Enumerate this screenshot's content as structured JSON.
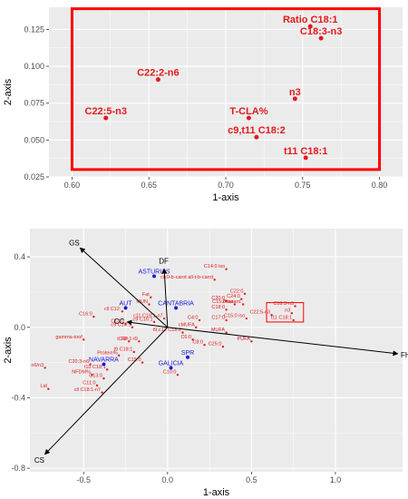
{
  "colors": {
    "panel": "#ebebeb",
    "grid": "#ffffff",
    "highlight": "#ff0000",
    "points": "#e31a1c",
    "regions": "#1a1ad6",
    "vectors": "#000000"
  },
  "chart_data": [
    {
      "type": "scatter",
      "title": "",
      "xlabel": "1-axis",
      "ylabel": "2-axis",
      "xlim": [
        0.585,
        0.815
      ],
      "ylim": [
        0.025,
        0.14
      ],
      "xticks": [
        "0.60",
        "0.65",
        "0.70",
        "0.75",
        "0.80"
      ],
      "yticks": [
        "0.025",
        "0.050",
        "0.075",
        "0.100",
        "0.125"
      ],
      "xtick_values": [
        0.6,
        0.65,
        0.7,
        0.75,
        0.8
      ],
      "ytick_values": [
        0.025,
        0.05,
        0.075,
        0.1,
        0.125
      ],
      "grid": true,
      "highlight_box": {
        "x": [
          0.6,
          0.8
        ],
        "y": [
          0.03,
          0.139
        ]
      },
      "points": [
        {
          "label": "Ratio C18:1",
          "x": 0.755,
          "y": 0.127
        },
        {
          "label": "C18:3-n3",
          "x": 0.762,
          "y": 0.119
        },
        {
          "label": "C22:2-n6",
          "x": 0.656,
          "y": 0.091
        },
        {
          "label": "n3",
          "x": 0.745,
          "y": 0.078
        },
        {
          "label": "C22:5-n3",
          "x": 0.622,
          "y": 0.065
        },
        {
          "label": "T-CLA%",
          "x": 0.715,
          "y": 0.065
        },
        {
          "label": "c9,t11 C18:2",
          "x": 0.72,
          "y": 0.052
        },
        {
          "label": "t11 C18:1",
          "x": 0.752,
          "y": 0.038
        }
      ]
    },
    {
      "type": "scatter",
      "title": "",
      "xlabel": "1-axis",
      "ylabel": "2-axis",
      "xlim": [
        -0.82,
        1.4
      ],
      "ylim": [
        -0.82,
        0.56
      ],
      "xticks": [
        "-0.5",
        "0.0",
        "0.5",
        "1.0"
      ],
      "yticks": [
        "-0.8",
        "-0.4",
        "0.0",
        "0.4"
      ],
      "xtick_values": [
        -0.5,
        0.0,
        0.5,
        1.0
      ],
      "ytick_values": [
        -0.8,
        -0.4,
        0.0,
        0.4
      ],
      "grid": true,
      "highlight_box": {
        "x": [
          0.59,
          0.81
        ],
        "y": [
          0.03,
          0.14
        ]
      },
      "vectors": [
        {
          "label": "GS",
          "x": -0.52,
          "y": 0.45
        },
        {
          "label": "DF",
          "x": -0.02,
          "y": 0.33
        },
        {
          "label": "FH",
          "x": 1.37,
          "y": -0.15
        },
        {
          "label": "CS",
          "x": -0.73,
          "y": -0.72
        },
        {
          "label": "CC",
          "x": -0.24,
          "y": 0.03
        }
      ],
      "regions": [
        {
          "label": "ASTURIAS",
          "x": -0.08,
          "y": 0.29
        },
        {
          "label": "AUT",
          "x": -0.25,
          "y": 0.11
        },
        {
          "label": "CANTABRIA",
          "x": 0.05,
          "y": 0.11
        },
        {
          "label": "NAVARRA",
          "x": -0.38,
          "y": -0.21
        },
        {
          "label": "SPR",
          "x": 0.12,
          "y": -0.17
        },
        {
          "label": "GALICIA",
          "x": 0.02,
          "y": -0.23
        }
      ],
      "points": [
        {
          "label": "C14:0 iso",
          "x": 0.35,
          "y": 0.33
        },
        {
          "label": "cis9-b-carot all-t-b-carot",
          "x": 0.28,
          "y": 0.27
        },
        {
          "label": "C22:0",
          "x": 0.46,
          "y": 0.19
        },
        {
          "label": "C20:0",
          "x": 0.35,
          "y": 0.15
        },
        {
          "label": "C24:0",
          "x": 0.44,
          "y": 0.16
        },
        {
          "label": "C15:0 iso",
          "x": 0.4,
          "y": 0.13
        },
        {
          "label": "Zeaxant.",
          "x": 0.45,
          "y": 0.13
        },
        {
          "label": "C18:0",
          "x": 0.35,
          "y": 0.1
        },
        {
          "label": "C15:0 iso",
          "x": 0.47,
          "y": 0.05
        },
        {
          "label": "C18:3-n3",
          "x": 0.76,
          "y": 0.12
        },
        {
          "label": "C22:5-n3",
          "x": 0.62,
          "y": 0.07
        },
        {
          "label": "t11 C18:1",
          "x": 0.75,
          "y": 0.04
        },
        {
          "label": "n3",
          "x": 0.74,
          "y": 0.08
        },
        {
          "label": "MUN",
          "x": -0.11,
          "y": 0.13
        },
        {
          "label": "Fat",
          "x": -0.1,
          "y": 0.17
        },
        {
          "label": "cll C12:",
          "x": -0.27,
          "y": 0.09
        },
        {
          "label": "C16:0",
          "x": -0.44,
          "y": 0.06
        },
        {
          "label": "C14:0",
          "x": -0.25,
          "y": 0.02
        },
        {
          "label": "c9 C14:1",
          "x": -0.21,
          "y": 0.0
        },
        {
          "label": "c9 C16:1",
          "x": -0.08,
          "y": 0.03
        },
        {
          "label": "c11 C18:1-n7",
          "x": -0.02,
          "y": 0.05
        },
        {
          "label": "C17:0",
          "x": 0.35,
          "y": 0.04
        },
        {
          "label": "C4:0",
          "x": 0.19,
          "y": 0.04
        },
        {
          "label": "cMUFA",
          "x": 0.17,
          "y": 0.0
        },
        {
          "label": "MUFA",
          "x": 0.35,
          "y": -0.03
        },
        {
          "label": "PUFA",
          "x": 0.5,
          "y": -0.08
        },
        {
          "label": "gamma-toof",
          "x": -0.5,
          "y": -0.07
        },
        {
          "label": "FP",
          "x": -0.23,
          "y": -0.08
        },
        {
          "label": "tC18:1-t9",
          "x": -0.17,
          "y": -0.08
        },
        {
          "label": "C6:0",
          "x": 0.15,
          "y": -0.07
        },
        {
          "label": "C8:0",
          "x": 0.22,
          "y": -0.1
        },
        {
          "label": "t9,c12 C18:2",
          "x": 0.09,
          "y": -0.03
        },
        {
          "label": "C25:0",
          "x": 0.33,
          "y": -0.11
        },
        {
          "label": "Protein%",
          "x": -0.29,
          "y": -0.16
        },
        {
          "label": "t9 C18:1",
          "x": -0.2,
          "y": -0.14
        },
        {
          "label": "C15:0",
          "x": -0.15,
          "y": -0.2
        },
        {
          "label": "C10:0",
          "x": 0.06,
          "y": -0.27
        },
        {
          "label": "C20:3-n6",
          "x": -0.46,
          "y": -0.21
        },
        {
          "label": "n6/n3",
          "x": -0.73,
          "y": -0.23
        },
        {
          "label": "t10 C18:1",
          "x": -0.36,
          "y": -0.24
        },
        {
          "label": "NFDM%",
          "x": -0.45,
          "y": -0.27
        },
        {
          "label": "C13:0",
          "x": -0.38,
          "y": -0.29
        },
        {
          "label": "C11:0",
          "x": -0.42,
          "y": -0.33
        },
        {
          "label": "cll C18:1-n7",
          "x": -0.39,
          "y": -0.37
        },
        {
          "label": "Lid",
          "x": -0.71,
          "y": -0.35
        }
      ]
    }
  ]
}
